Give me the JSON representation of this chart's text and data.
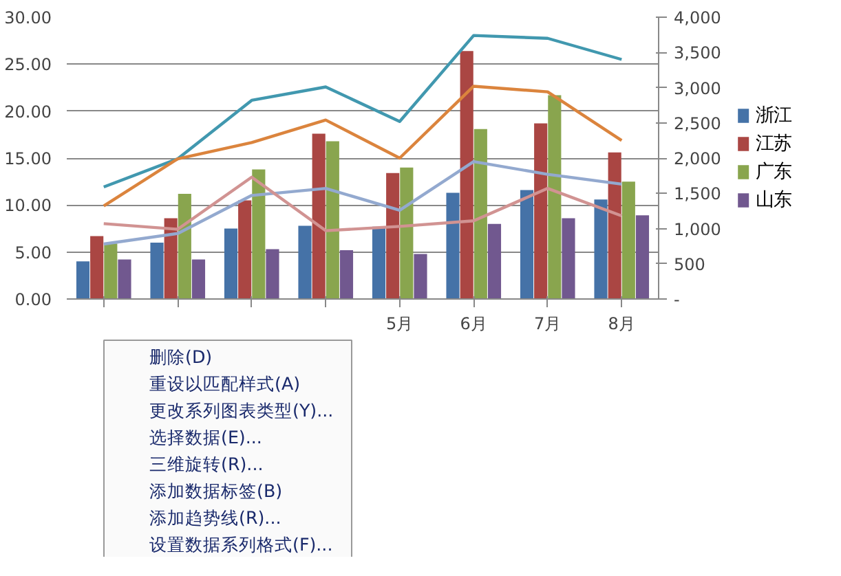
{
  "chart_data": {
    "type": "bar",
    "categories": [
      null,
      null,
      null,
      null,
      "5月",
      "6月",
      "7月",
      "8月"
    ],
    "ylim": [
      0,
      30
    ],
    "yticks": [
      {
        "value": 0,
        "label": "0.00"
      },
      {
        "value": 5,
        "label": "5.00"
      },
      {
        "value": 10,
        "label": "10.00"
      },
      {
        "value": 15,
        "label": "15.00"
      },
      {
        "value": 20,
        "label": "20.00"
      },
      {
        "value": 25,
        "label": "25.00"
      },
      {
        "value": 30,
        "label": "30.00"
      }
    ],
    "y2lim": [
      0,
      4000
    ],
    "y2ticks": [
      {
        "value": 0,
        "label": "-"
      },
      500,
      {
        "value": 1000,
        "label": "1,000"
      },
      {
        "value": 1500,
        "label": "1,500"
      },
      {
        "value": 2000,
        "label": "2,000"
      },
      {
        "value": 2500,
        "label": "2,500"
      },
      {
        "value": 3000,
        "label": "3,000"
      },
      {
        "value": 3500,
        "label": "3,500"
      },
      {
        "value": 4000,
        "label": "4,000"
      }
    ],
    "grid": "y",
    "legend": "right",
    "series": [
      {
        "name": "浙江",
        "color": "#4572a7",
        "values": [
          4.0,
          6.0,
          7.5,
          7.8,
          7.7,
          11.3,
          11.6,
          10.6
        ]
      },
      {
        "name": "江苏",
        "color": "#aa4643",
        "values": [
          6.7,
          8.6,
          10.5,
          17.6,
          13.4,
          26.4,
          18.7,
          15.6
        ]
      },
      {
        "name": "广东",
        "color": "#89a54e",
        "values": [
          5.9,
          11.2,
          13.8,
          16.8,
          14.0,
          18.1,
          21.7,
          12.5
        ]
      },
      {
        "name": "山东",
        "color": "#71588f",
        "values": [
          4.2,
          4.2,
          5.3,
          5.2,
          4.8,
          8.0,
          8.6,
          8.9
        ]
      },
      {
        "type": "line",
        "axis": "y2",
        "color": "#4198af",
        "values": [
          1590,
          1990,
          2820,
          3010,
          2520,
          3740,
          3700,
          3400
        ]
      },
      {
        "type": "line",
        "axis": "y2",
        "color": "#db843d",
        "values": [
          1320,
          1990,
          2220,
          2540,
          2000,
          3020,
          2940,
          2250
        ]
      },
      {
        "type": "line",
        "axis": "y2",
        "color": "#93a9cf",
        "values": [
          780,
          930,
          1470,
          1570,
          1260,
          1950,
          1770,
          1630
        ]
      },
      {
        "type": "line",
        "axis": "y2",
        "color": "#d19392",
        "values": [
          1070,
          990,
          1730,
          970,
          1030,
          1110,
          1570,
          1180
        ]
      }
    ],
    "annotations": [
      "删除(D)",
      "重设以匹配样式(A)",
      "更改系列图表类型(Y)...",
      "选择数据(E)...",
      "三维旋转(R)...",
      "添加数据标签(B)",
      "添加趋势线(R)...",
      "设置数据系列格式(F)..."
    ]
  }
}
